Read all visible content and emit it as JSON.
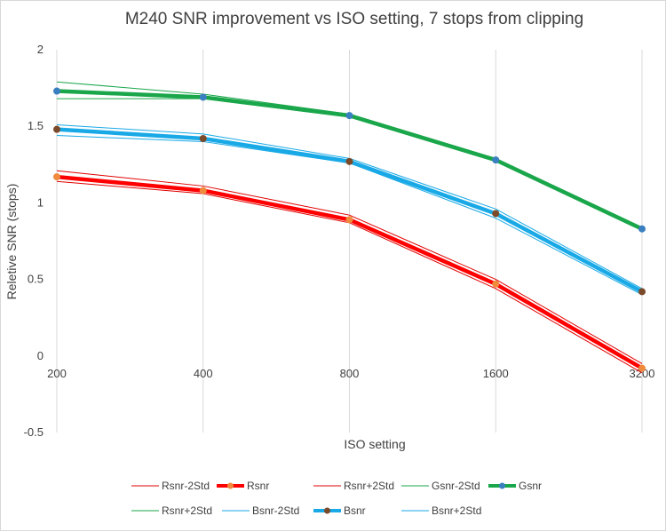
{
  "chart_data": {
    "type": "line",
    "title": "M240 SNR improvement vs ISO setting, 7 stops from clipping",
    "xlabel": "ISO setting",
    "ylabel": "Reletive SNR (stops)",
    "categories": [
      "200",
      "400",
      "800",
      "1600",
      "3200"
    ],
    "ylim": [
      -0.5,
      2
    ],
    "yticks": [
      "2",
      "1.5",
      "1",
      "0.5",
      "0",
      "-0.5"
    ],
    "ytick_values": [
      2,
      1.5,
      1,
      0.5,
      0,
      -0.5
    ],
    "grid": "vertical",
    "legend_position": "bottom",
    "series": [
      {
        "name": "Rsnr-2Std",
        "color": "#e00000",
        "style": "thin",
        "values": [
          1.14,
          1.06,
          0.87,
          0.44,
          -0.11
        ]
      },
      {
        "name": "Rsnr",
        "color": "#ff0000",
        "style": "thick",
        "marker_color": "#f08a3c",
        "values": [
          1.17,
          1.08,
          0.89,
          0.47,
          -0.08
        ]
      },
      {
        "name": "Rsnr+2Std",
        "color": "#e00000",
        "style": "thin",
        "values": [
          1.21,
          1.11,
          0.92,
          0.5,
          -0.05
        ]
      },
      {
        "name": "Gsnr-2Std",
        "color": "#1aa64a",
        "style": "thin",
        "values": [
          1.68,
          1.68,
          1.56,
          1.27,
          0.82
        ]
      },
      {
        "name": "Gsnr",
        "color": "#1aa64a",
        "style": "thick",
        "marker_color": "#3a7fc0",
        "values": [
          1.73,
          1.69,
          1.57,
          1.28,
          0.83
        ]
      },
      {
        "name": "Rsnr+2Std",
        "color": "#1aa64a",
        "style": "thin",
        "values": [
          1.79,
          1.71,
          1.58,
          1.29,
          0.84
        ]
      },
      {
        "name": "Bsnr-2Std",
        "color": "#19a9e6",
        "style": "thin",
        "values": [
          1.44,
          1.4,
          1.26,
          0.9,
          0.4
        ]
      },
      {
        "name": "Bsnr",
        "color": "#19a9e6",
        "style": "thick",
        "marker_color": "#7a4a2a",
        "values": [
          1.48,
          1.42,
          1.27,
          0.93,
          0.42
        ]
      },
      {
        "name": "Bsnr+2Std",
        "color": "#19a9e6",
        "style": "thin",
        "values": [
          1.51,
          1.45,
          1.29,
          0.96,
          0.44
        ]
      }
    ]
  }
}
